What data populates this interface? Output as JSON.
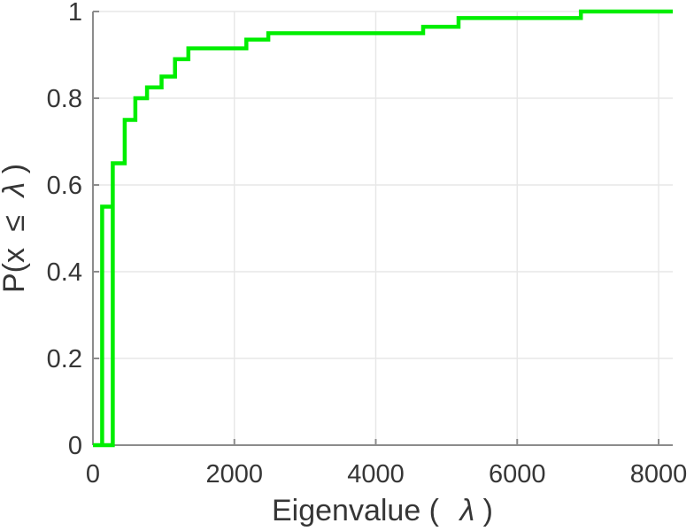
{
  "figure": {
    "background": "#ffffff"
  },
  "chart_data": {
    "type": "line",
    "subtype": "ecdf-stairs",
    "title": "",
    "xlabel": {
      "prefix": "Eigenvalue (",
      "symbol": "λ",
      "suffix": ")"
    },
    "ylabel": {
      "prefix": "P(x",
      "operator": "≤",
      "symbol": "λ",
      "suffix": ")"
    },
    "xlim": [
      0,
      8200
    ],
    "ylim": [
      0,
      1
    ],
    "xticks": [
      0,
      2000,
      4000,
      6000,
      8000
    ],
    "xtick_labels": [
      "0",
      "2000",
      "4000",
      "6000",
      "8000"
    ],
    "yticks": [
      0,
      0.2,
      0.4,
      0.6,
      0.8,
      1
    ],
    "ytick_labels": [
      "0",
      "0.2",
      "0.4",
      "0.6",
      "0.8",
      "1"
    ],
    "grid": true,
    "legend": null,
    "line_color": "#00ee00",
    "line_width": 4.5,
    "jumps": [
      {
        "x": 130,
        "p": 0.55
      },
      {
        "x": 280,
        "p": 0.65
      },
      {
        "x": 450,
        "p": 0.75
      },
      {
        "x": 600,
        "p": 0.8
      },
      {
        "x": 765,
        "p": 0.825
      },
      {
        "x": 970,
        "p": 0.85
      },
      {
        "x": 1160,
        "p": 0.89
      },
      {
        "x": 1350,
        "p": 0.915
      },
      {
        "x": 2170,
        "p": 0.935
      },
      {
        "x": 2480,
        "p": 0.95
      },
      {
        "x": 4670,
        "p": 0.965
      },
      {
        "x": 5170,
        "p": 0.985
      },
      {
        "x": 6900,
        "p": 1.0
      }
    ],
    "x_end": 8200,
    "polylines": [
      [
        [
          0,
          0
        ],
        [
          280,
          0
        ],
        [
          280,
          0.65
        ],
        [
          450,
          0.65
        ],
        [
          450,
          0.75
        ],
        [
          600,
          0.75
        ],
        [
          600,
          0.8
        ],
        [
          765,
          0.8
        ],
        [
          765,
          0.825
        ],
        [
          970,
          0.825
        ],
        [
          970,
          0.85
        ],
        [
          1160,
          0.85
        ],
        [
          1160,
          0.89
        ],
        [
          1350,
          0.89
        ],
        [
          1350,
          0.915
        ],
        [
          2170,
          0.915
        ],
        [
          2170,
          0.935
        ],
        [
          2480,
          0.935
        ],
        [
          2480,
          0.95
        ],
        [
          4670,
          0.95
        ],
        [
          4670,
          0.965
        ],
        [
          5170,
          0.965
        ],
        [
          5170,
          0.985
        ],
        [
          6900,
          0.985
        ],
        [
          6900,
          1
        ],
        [
          8200,
          1
        ]
      ],
      [
        [
          130,
          0
        ],
        [
          130,
          0.55
        ],
        [
          280,
          0.55
        ]
      ]
    ]
  },
  "axis_style": {
    "spine_color": "#8c8c8c",
    "tick_color": "#8c8c8c",
    "grid_color": "#e7e7e7",
    "label_color": "#363636"
  }
}
